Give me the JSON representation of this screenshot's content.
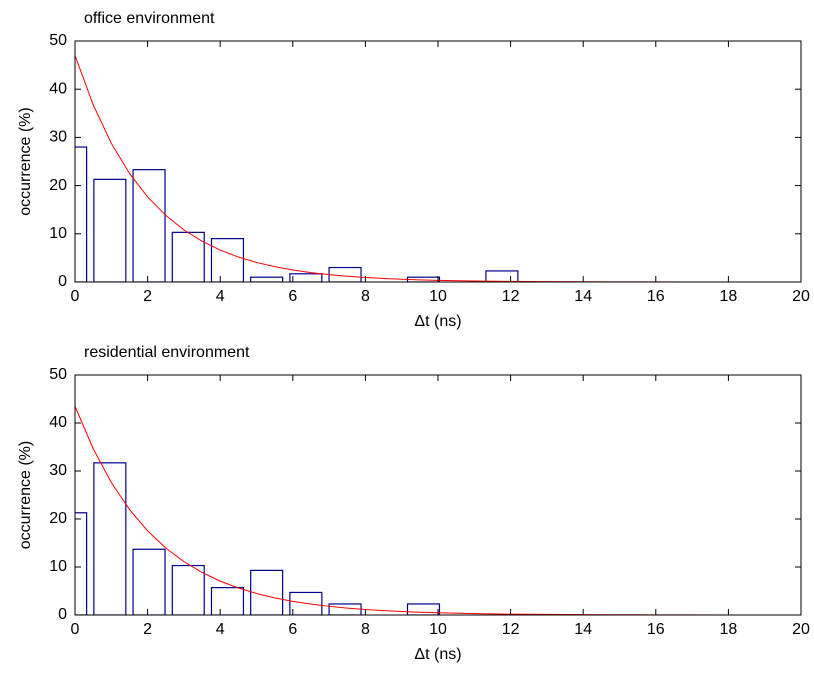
{
  "chart_data": [
    {
      "type": "histogram",
      "title": "office environment",
      "xlabel": "Δt (ns)",
      "ylabel": "occurrence (%)",
      "bins": [
        -0.66,
        0.42,
        1.5,
        2.58,
        3.66,
        4.74,
        5.82,
        6.9,
        7.98,
        9.06,
        10.14,
        11.22,
        12.3
      ],
      "values": [
        28,
        21.3,
        23.3,
        10.3,
        9,
        1,
        1.7,
        3,
        0,
        1,
        0,
        2.3
      ],
      "color": "#00008b",
      "line": {
        "color": "#ff0000",
        "x": [
          0,
          0.5,
          1,
          1.5,
          2,
          2.5,
          3,
          3.5,
          4,
          4.5,
          5,
          5.5,
          6,
          6.5,
          7,
          7.5,
          8,
          8.5,
          9,
          9.5,
          10,
          11,
          12,
          13,
          14,
          15,
          16,
          17,
          18,
          19,
          20
        ],
        "values": [
          47,
          36.79,
          28.79,
          22.54,
          17.64,
          13.81,
          10.81,
          8.46,
          6.62,
          5.18,
          4.06,
          3.18,
          2.49,
          1.95,
          1.52,
          1.19,
          0.93,
          0.73,
          0.57,
          0.45,
          0.35,
          0.21,
          0.13,
          0.08,
          0.05,
          0.03,
          0.02,
          0.01,
          0.01,
          0,
          0
        ]
      },
      "xlim": [
        0,
        20
      ],
      "xticks": [
        0,
        2,
        4,
        6,
        8,
        10,
        12,
        14,
        16,
        18,
        20
      ],
      "ylim": [
        0,
        50
      ],
      "yticks": [
        0,
        10,
        20,
        30,
        40,
        50
      ],
      "grid": false
    },
    {
      "type": "histogram",
      "title": "residential environment",
      "xlabel": "Δt (ns)",
      "ylabel": "occurrence (%)",
      "bins": [
        -0.66,
        0.42,
        1.5,
        2.58,
        3.66,
        4.74,
        5.82,
        6.9,
        7.98,
        9.06,
        10.14,
        11.22,
        12.3
      ],
      "values": [
        21.3,
        31.7,
        13.7,
        10.3,
        5.7,
        9.3,
        4.7,
        2.3,
        0,
        2.3,
        0,
        0
      ],
      "color": "#00008b",
      "line": {
        "color": "#ff0000",
        "x": [
          0,
          0.5,
          1,
          1.5,
          2,
          2.5,
          3,
          3.5,
          4,
          4.5,
          5,
          5.5,
          6,
          6.5,
          7,
          7.5,
          8,
          8.5,
          9,
          9.5,
          10,
          11,
          12,
          13,
          14,
          15,
          16,
          17,
          18,
          19,
          20
        ],
        "values": [
          43.5,
          34.66,
          27.61,
          22,
          17.53,
          13.96,
          11.12,
          8.86,
          7.06,
          5.63,
          4.48,
          3.57,
          2.85,
          2.27,
          1.81,
          1.44,
          1.15,
          0.91,
          0.73,
          0.58,
          0.46,
          0.29,
          0.19,
          0.12,
          0.07,
          0.05,
          0.03,
          0.02,
          0.01,
          0.01,
          0.01
        ]
      },
      "xlim": [
        0,
        20
      ],
      "xticks": [
        0,
        2,
        4,
        6,
        8,
        10,
        12,
        14,
        16,
        18,
        20
      ],
      "ylim": [
        0,
        50
      ],
      "yticks": [
        0,
        10,
        20,
        30,
        40,
        50
      ],
      "grid": false
    }
  ]
}
